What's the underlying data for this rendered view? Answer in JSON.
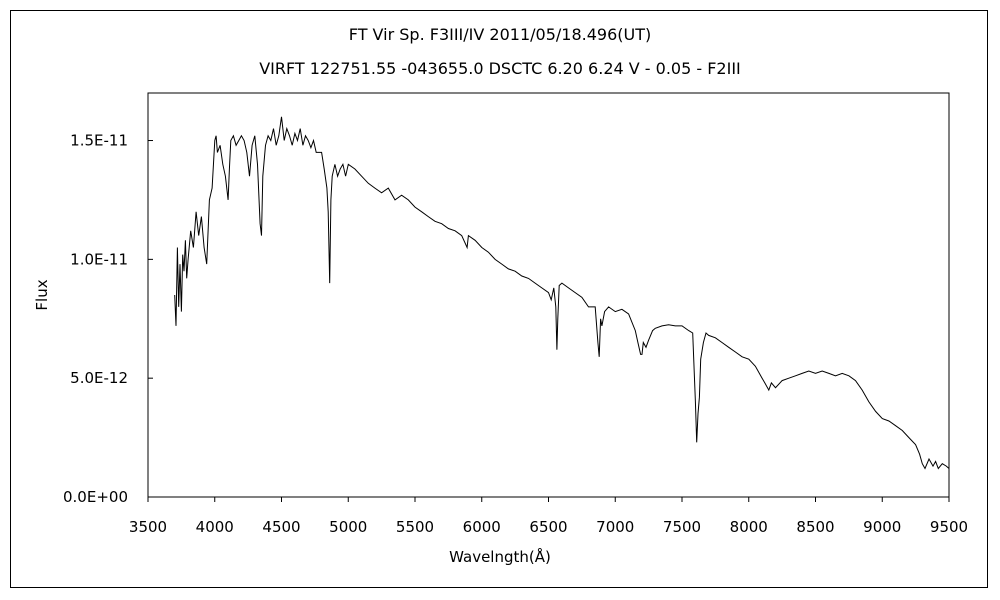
{
  "chart_data": {
    "type": "line",
    "title": "FT Vir    Sp. F3III/IV    2011/05/18.496(UT)",
    "subtitle": "VIRFT 122751.55 -043655.0 DSCTC 6.20 6.24 V - 0.05 - F2III",
    "xlabel": "Wavelngth(Å)",
    "ylabel": "Flux",
    "xlim": [
      3500,
      9500
    ],
    "ylim": [
      0,
      1.7e-11
    ],
    "x_ticks": [
      3500,
      4000,
      4500,
      5000,
      5500,
      6000,
      6500,
      7000,
      7500,
      8000,
      8500,
      9000,
      9500
    ],
    "x_tick_labels": [
      "3500",
      "4000",
      "4500",
      "5000",
      "5500",
      "6000",
      "6500",
      "7000",
      "7500",
      "8000",
      "8500",
      "9000",
      "9500"
    ],
    "y_ticks": [
      0,
      5e-12,
      1e-11,
      1.5e-11
    ],
    "y_tick_labels": [
      "0.0E+00",
      "5.0E-12",
      "1.0E-11",
      "1.5E-11"
    ],
    "grid": false,
    "legend": "none",
    "line_color": "#000000",
    "series": [
      {
        "x": [
          3700,
          3710,
          3720,
          3730,
          3740,
          3750,
          3760,
          3770,
          3780,
          3790,
          3800,
          3820,
          3840,
          3860,
          3880,
          3900,
          3920,
          3940,
          3960,
          3980,
          4000,
          4010,
          4020,
          4040,
          4060,
          4080,
          4100,
          4110,
          4120,
          4140,
          4160,
          4180,
          4200,
          4220,
          4240,
          4260,
          4280,
          4300,
          4320,
          4340,
          4350,
          4360,
          4380,
          4400,
          4420,
          4440,
          4460,
          4480,
          4500,
          4520,
          4540,
          4560,
          4580,
          4600,
          4620,
          4640,
          4660,
          4680,
          4700,
          4720,
          4740,
          4760,
          4800,
          4820,
          4840,
          4850,
          4861,
          4870,
          4880,
          4900,
          4920,
          4940,
          4960,
          4980,
          5000,
          5050,
          5100,
          5150,
          5200,
          5250,
          5300,
          5350,
          5400,
          5450,
          5500,
          5550,
          5600,
          5650,
          5700,
          5750,
          5800,
          5850,
          5890,
          5900,
          5950,
          6000,
          6050,
          6100,
          6150,
          6200,
          6250,
          6300,
          6350,
          6400,
          6450,
          6500,
          6520,
          6540,
          6555,
          6563,
          6570,
          6580,
          6600,
          6650,
          6700,
          6750,
          6800,
          6850,
          6870,
          6880,
          6890,
          6900,
          6920,
          6950,
          7000,
          7050,
          7100,
          7150,
          7170,
          7190,
          7200,
          7210,
          7230,
          7250,
          7280,
          7300,
          7350,
          7400,
          7450,
          7500,
          7550,
          7580,
          7600,
          7610,
          7620,
          7630,
          7640,
          7660,
          7680,
          7700,
          7750,
          7800,
          7850,
          7900,
          7950,
          8000,
          8050,
          8100,
          8120,
          8150,
          8170,
          8200,
          8250,
          8300,
          8350,
          8400,
          8450,
          8500,
          8550,
          8600,
          8650,
          8700,
          8750,
          8800,
          8850,
          8900,
          8950,
          9000,
          9050,
          9100,
          9150,
          9200,
          9250,
          9280,
          9300,
          9320,
          9350,
          9380,
          9400,
          9420,
          9450,
          9480,
          9500
        ],
        "y": [
          8.5e-12,
          7.2e-12,
          1.05e-11,
          8e-12,
          9.8e-12,
          7.8e-12,
          1.02e-11,
          9.5e-12,
          1.08e-11,
          9.2e-12,
          1e-11,
          1.12e-11,
          1.05e-11,
          1.2e-11,
          1.1e-11,
          1.18e-11,
          1.05e-11,
          9.8e-12,
          1.25e-11,
          1.3e-11,
          1.5e-11,
          1.52e-11,
          1.45e-11,
          1.48e-11,
          1.4e-11,
          1.35e-11,
          1.25e-11,
          1.38e-11,
          1.5e-11,
          1.52e-11,
          1.48e-11,
          1.5e-11,
          1.52e-11,
          1.5e-11,
          1.45e-11,
          1.35e-11,
          1.48e-11,
          1.52e-11,
          1.4e-11,
          1.15e-11,
          1.1e-11,
          1.35e-11,
          1.48e-11,
          1.52e-11,
          1.5e-11,
          1.55e-11,
          1.48e-11,
          1.52e-11,
          1.6e-11,
          1.5e-11,
          1.55e-11,
          1.52e-11,
          1.48e-11,
          1.53e-11,
          1.5e-11,
          1.55e-11,
          1.48e-11,
          1.52e-11,
          1.5e-11,
          1.47e-11,
          1.5e-11,
          1.45e-11,
          1.45e-11,
          1.38e-11,
          1.3e-11,
          1.2e-11,
          9e-12,
          1.25e-11,
          1.35e-11,
          1.4e-11,
          1.35e-11,
          1.38e-11,
          1.4e-11,
          1.35e-11,
          1.4e-11,
          1.38e-11,
          1.35e-11,
          1.32e-11,
          1.3e-11,
          1.28e-11,
          1.3e-11,
          1.25e-11,
          1.27e-11,
          1.25e-11,
          1.22e-11,
          1.2e-11,
          1.18e-11,
          1.16e-11,
          1.15e-11,
          1.13e-11,
          1.12e-11,
          1.1e-11,
          1.05e-11,
          1.1e-11,
          1.08e-11,
          1.05e-11,
          1.03e-11,
          1e-11,
          9.8e-12,
          9.6e-12,
          9.5e-12,
          9.3e-12,
          9.2e-12,
          9e-12,
          8.8e-12,
          8.6e-12,
          8.3e-12,
          8.8e-12,
          8e-12,
          6.2e-12,
          7.5e-12,
          8.9e-12,
          9e-12,
          8.8e-12,
          8.6e-12,
          8.4e-12,
          8e-12,
          8e-12,
          6.5e-12,
          5.9e-12,
          7.5e-12,
          7.2e-12,
          7.8e-12,
          8e-12,
          7.8e-12,
          7.9e-12,
          7.7e-12,
          7e-12,
          6.5e-12,
          6e-12,
          6e-12,
          6.5e-12,
          6.3e-12,
          6.6e-12,
          7e-12,
          7.1e-12,
          7.2e-12,
          7.25e-12,
          7.2e-12,
          7.2e-12,
          7e-12,
          6.9e-12,
          4e-12,
          2.3e-12,
          3.5e-12,
          4.2e-12,
          5.8e-12,
          6.5e-12,
          6.9e-12,
          6.8e-12,
          6.7e-12,
          6.5e-12,
          6.3e-12,
          6.1e-12,
          5.9e-12,
          5.8e-12,
          5.5e-12,
          5e-12,
          4.8e-12,
          4.5e-12,
          4.8e-12,
          4.6e-12,
          4.9e-12,
          5e-12,
          5.1e-12,
          5.2e-12,
          5.3e-12,
          5.2e-12,
          5.3e-12,
          5.2e-12,
          5.1e-12,
          5.2e-12,
          5.1e-12,
          4.9e-12,
          4.5e-12,
          4e-12,
          3.6e-12,
          3.3e-12,
          3.2e-12,
          3e-12,
          2.8e-12,
          2.5e-12,
          2.2e-12,
          1.8e-12,
          1.4e-12,
          1.2e-12,
          1.6e-12,
          1.3e-12,
          1.5e-12,
          1.2e-12,
          1.4e-12,
          1.3e-12,
          1.2e-12
        ]
      }
    ]
  }
}
